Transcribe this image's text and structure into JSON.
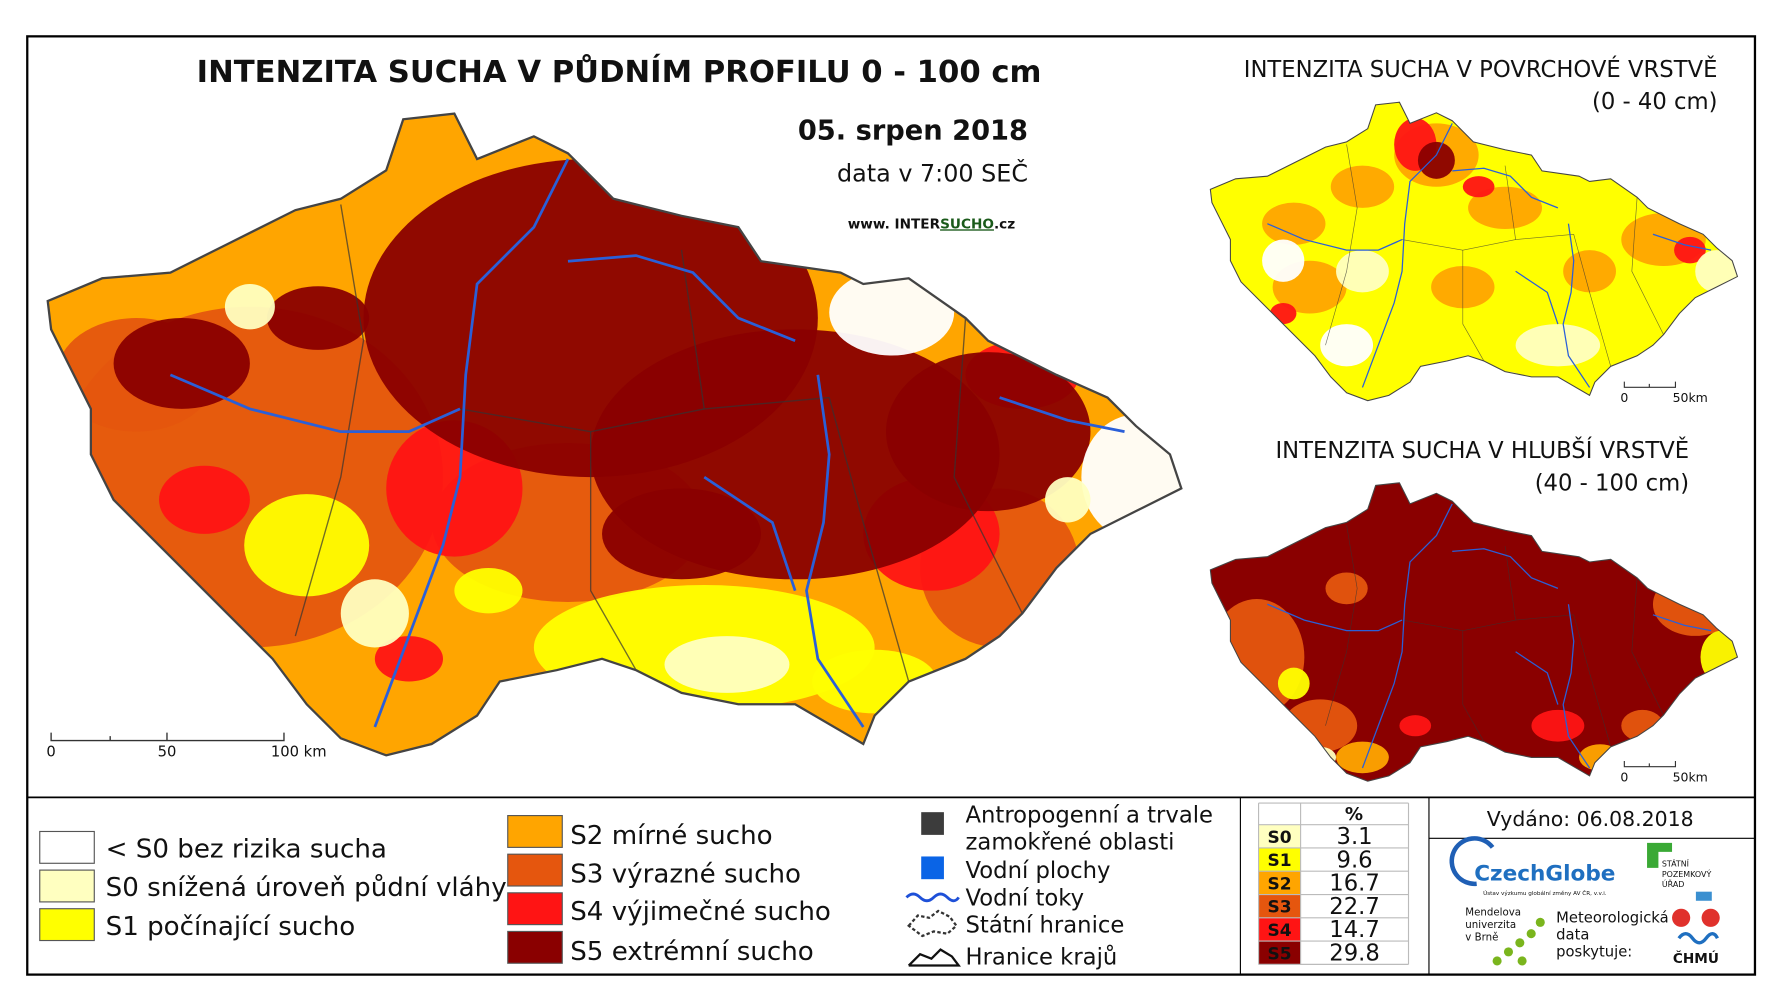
{
  "main_map": {
    "title": "INTENZITA SUCHA V PŮDNÍM PROFILU 0 - 100 cm",
    "date": "05. srpen 2018",
    "time": "data v 7:00 SEČ",
    "website": [
      "www. INTER",
      "SUCHO",
      ".cz"
    ],
    "scale": [
      "0",
      "50",
      "100 km"
    ]
  },
  "surface_map": {
    "title": "INTENZITA SUCHA V POVRCHOVÉ VRSTVĚ",
    "subtitle": "(0 - 40 cm)",
    "scale": [
      "0",
      "50km"
    ]
  },
  "deep_map": {
    "title": "INTENZITA SUCHA V HLUBŠÍ VRSTVĚ",
    "subtitle": "(40 - 100 cm)",
    "scale": [
      "0",
      "50km"
    ]
  },
  "legend": {
    "classes": [
      {
        "label": "< S0 bez rizika sucha",
        "color": "#ffffff"
      },
      {
        "label": "S0 snížená úroveň půdní vláhy",
        "color": "#ffffc0"
      },
      {
        "label": "S1 počínající sucho",
        "color": "#ffff00"
      },
      {
        "label": "S2 mírné sucho",
        "color": "#ffa500"
      },
      {
        "label": "S3 výrazné sucho",
        "color": "#e5560e"
      },
      {
        "label": "S4 výjimečné sucho",
        "color": "#ff1414"
      },
      {
        "label": "S5 extrémní sucho",
        "color": "#8a0000"
      }
    ],
    "symbols": [
      {
        "lines": [
          "Antropogenní a trvale",
          "zamokřené oblasti"
        ]
      },
      {
        "lines": [
          "Vodní plochy"
        ]
      },
      {
        "lines": [
          "Vodní toky"
        ]
      },
      {
        "lines": [
          "Státní hranice"
        ]
      },
      {
        "lines": [
          "Hranice krajů"
        ]
      }
    ]
  },
  "stats": {
    "header": "%",
    "rows": [
      {
        "code": "S0",
        "value": 3.1
      },
      {
        "code": "S1",
        "value": 9.6
      },
      {
        "code": "S2",
        "value": 16.7
      },
      {
        "code": "S3",
        "value": 22.7
      },
      {
        "code": "S4",
        "value": 14.7
      },
      {
        "code": "S5",
        "value": 29.8
      }
    ]
  },
  "issued": "Vydáno: 06.08.2018",
  "logos": {
    "czechglobe": "CzechGlobe",
    "czechglobe_sub": "Ústav výzkumu globální změny AV ČR, v.v.i.",
    "mendelu": [
      "Mendelova",
      "univerzita",
      "v Brně"
    ],
    "meteo": [
      "Meteorologická",
      "data",
      "poskytuje:"
    ],
    "chmu": "ČHMÚ",
    "spu": [
      "STÁTNÍ",
      "POZEMKOVÝ",
      "ÚŘAD"
    ]
  }
}
